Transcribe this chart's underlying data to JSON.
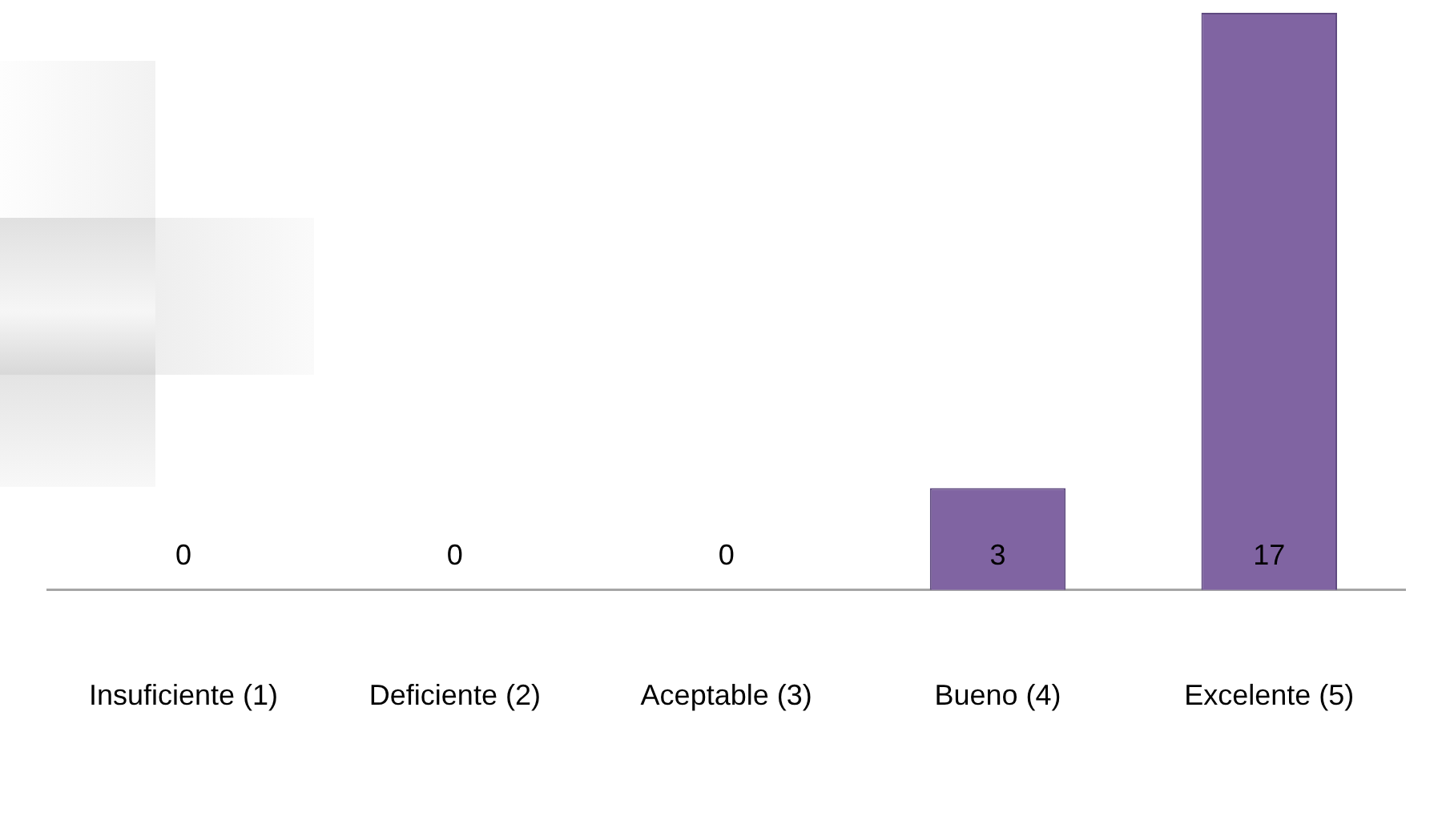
{
  "chart_data": {
    "type": "bar",
    "categories": [
      "Insuficiente (1)",
      "Deficiente (2)",
      "Aceptable (3)",
      "Bueno (4)",
      "Excelente (5)"
    ],
    "values": [
      0,
      0,
      0,
      3,
      17
    ],
    "color": "#8064a2",
    "data_labels": true,
    "grid": false,
    "legend": false,
    "tick_labels": "x"
  }
}
